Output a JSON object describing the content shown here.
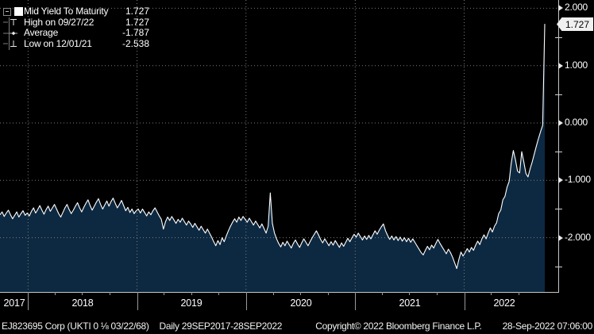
{
  "colors": {
    "background": "#000000",
    "area_fill": "#0d2942",
    "line": "#ffffff",
    "grid": "#7a7a7a",
    "axis": "#c8c8c8",
    "tick": "#9a9a9a",
    "label": "#ffffff",
    "badge_bg": "#f0f0f0",
    "badge_text": "#000000"
  },
  "legend": {
    "rows": [
      {
        "marker": "series-swatch",
        "label": "Mid Yield To Maturity",
        "value": "1.727"
      },
      {
        "marker": "high-marker",
        "label": "High on 09/27/22",
        "value": "1.727"
      },
      {
        "marker": "average-marker",
        "label": "Average",
        "value": "-1.787"
      },
      {
        "marker": "low-marker",
        "label": "Low on 12/01/21",
        "value": "-2.538"
      }
    ]
  },
  "y_axis": {
    "last_value_label": "1.727",
    "major_ticks": [
      {
        "value": 2,
        "label": "2.000"
      },
      {
        "value": 1,
        "label": "1.000"
      },
      {
        "value": 0,
        "label": "0.000"
      },
      {
        "value": -1,
        "label": "-1.000"
      },
      {
        "value": -2,
        "label": "-2.000"
      }
    ],
    "minor_tick_values": [
      1.5,
      0.5,
      -0.5,
      -1.5,
      -2.5
    ]
  },
  "x_axis": {
    "year_labels": [
      "2017",
      "2018",
      "2019",
      "2020",
      "2021",
      "2022"
    ],
    "gridline_years": [
      2018,
      2019,
      2020,
      2021,
      2022
    ]
  },
  "footer": {
    "security": "EJ823695 Corp (UKTI 0 ⅛ 03/22/68)",
    "period": "Daily 29SEP2017-28SEP2022",
    "copyright": "Copyright© 2022 Bloomberg Finance L.P.",
    "timestamp": "28-Sep-2022 07:06:00"
  },
  "chart_data": {
    "type": "area",
    "series_name": "Mid Yield To Maturity",
    "start_date": "2017-09-29",
    "end_date": "2022-09-28",
    "frequency": "weekly (read from daily chart)",
    "ylim": [
      -2.946,
      2.144
    ],
    "grid": true,
    "stats": {
      "last": 1.727,
      "high": 1.727,
      "high_date": "09/27/22",
      "average": -1.787,
      "low": -2.538,
      "low_date": "12/01/21"
    },
    "values": [
      -1.6,
      -1.55,
      -1.63,
      -1.57,
      -1.52,
      -1.6,
      -1.67,
      -1.61,
      -1.55,
      -1.64,
      -1.58,
      -1.53,
      -1.61,
      -1.57,
      -1.62,
      -1.54,
      -1.48,
      -1.57,
      -1.51,
      -1.44,
      -1.52,
      -1.59,
      -1.51,
      -1.45,
      -1.54,
      -1.48,
      -1.42,
      -1.5,
      -1.58,
      -1.64,
      -1.56,
      -1.48,
      -1.42,
      -1.51,
      -1.58,
      -1.52,
      -1.45,
      -1.39,
      -1.48,
      -1.55,
      -1.47,
      -1.4,
      -1.34,
      -1.44,
      -1.52,
      -1.45,
      -1.38,
      -1.32,
      -1.42,
      -1.5,
      -1.43,
      -1.36,
      -1.45,
      -1.37,
      -1.31,
      -1.4,
      -1.48,
      -1.42,
      -1.35,
      -1.44,
      -1.53,
      -1.47,
      -1.56,
      -1.5,
      -1.58,
      -1.53,
      -1.5,
      -1.57,
      -1.5,
      -1.56,
      -1.62,
      -1.55,
      -1.6,
      -1.53,
      -1.48,
      -1.55,
      -1.62,
      -1.68,
      -1.85,
      -1.72,
      -1.64,
      -1.7,
      -1.63,
      -1.69,
      -1.75,
      -1.68,
      -1.73,
      -1.66,
      -1.72,
      -1.78,
      -1.71,
      -1.76,
      -1.82,
      -1.75,
      -1.81,
      -1.87,
      -1.8,
      -1.86,
      -1.92,
      -1.85,
      -1.92,
      -1.99,
      -2.07,
      -2.14,
      -2.05,
      -2.12,
      -2.0,
      -2.07,
      -1.97,
      -1.88,
      -1.8,
      -1.73,
      -1.67,
      -1.73,
      -1.64,
      -1.7,
      -1.63,
      -1.68,
      -1.73,
      -1.66,
      -1.72,
      -1.78,
      -1.71,
      -1.77,
      -1.83,
      -1.76,
      -1.84,
      -1.92,
      -1.8,
      -1.22,
      -1.75,
      -1.92,
      -2.02,
      -2.1,
      -2.16,
      -2.08,
      -2.14,
      -2.06,
      -2.12,
      -2.18,
      -2.1,
      -2.04,
      -2.11,
      -2.17,
      -2.09,
      -2.02,
      -2.08,
      -2.14,
      -2.07,
      -2.0,
      -1.94,
      -1.88,
      -1.95,
      -2.03,
      -2.09,
      -2.02,
      -2.08,
      -2.14,
      -2.07,
      -2.13,
      -2.05,
      -2.11,
      -2.17,
      -2.09,
      -2.15,
      -2.08,
      -2.01,
      -2.07,
      -2.0,
      -1.94,
      -1.99,
      -1.92,
      -1.98,
      -2.04,
      -1.97,
      -2.03,
      -1.96,
      -2.02,
      -1.95,
      -1.88,
      -1.94,
      -1.87,
      -1.81,
      -1.76,
      -1.88,
      -1.96,
      -2.03,
      -1.97,
      -2.04,
      -1.98,
      -2.05,
      -1.99,
      -2.06,
      -2.0,
      -2.07,
      -2.01,
      -2.08,
      -2.02,
      -2.08,
      -2.14,
      -2.2,
      -2.26,
      -2.3,
      -2.22,
      -2.15,
      -2.21,
      -2.13,
      -2.18,
      -2.1,
      -2.03,
      -2.1,
      -2.16,
      -2.22,
      -2.28,
      -2.2,
      -2.26,
      -2.34,
      -2.44,
      -2.538,
      -2.38,
      -2.25,
      -2.32,
      -2.26,
      -2.19,
      -2.25,
      -2.17,
      -2.22,
      -2.13,
      -2.06,
      -2.12,
      -2.02,
      -1.95,
      -2.02,
      -1.92,
      -1.83,
      -1.9,
      -1.8,
      -1.74,
      -1.58,
      -1.52,
      -1.34,
      -1.28,
      -1.12,
      -1.02,
      -0.7,
      -0.48,
      -0.64,
      -0.84,
      -0.87,
      -0.5,
      -0.68,
      -0.88,
      -0.94,
      -0.8,
      -0.68,
      -0.54,
      -0.4,
      -0.27,
      -0.15,
      -0.04,
      1.727
    ]
  }
}
